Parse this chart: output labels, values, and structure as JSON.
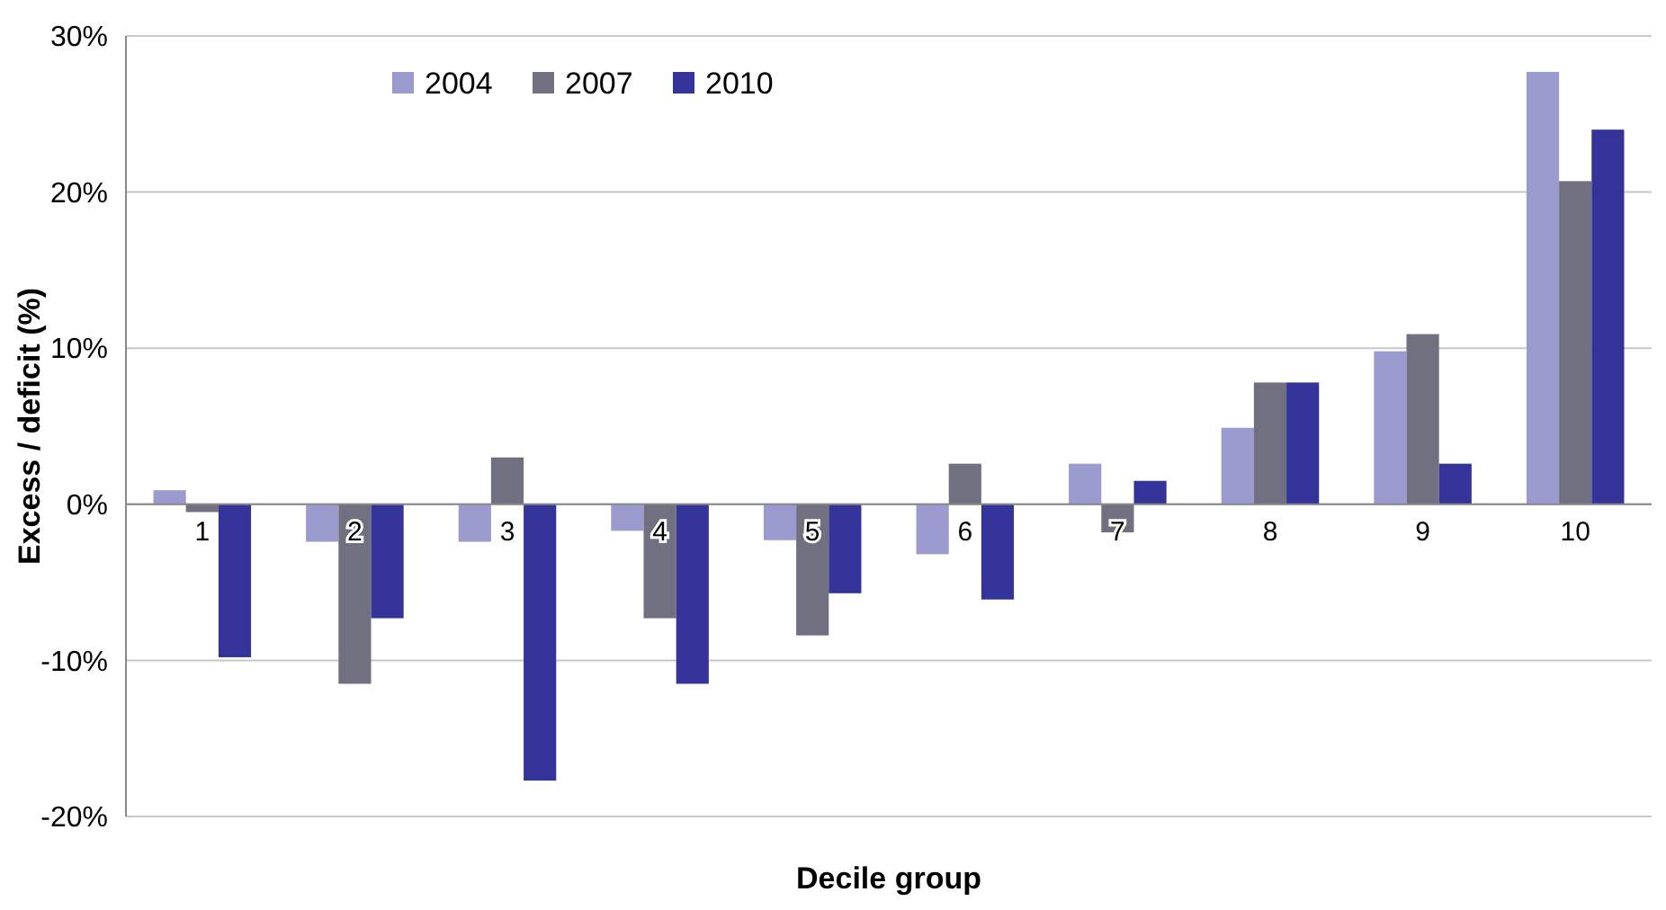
{
  "chart_data": {
    "type": "bar",
    "xlabel": "Decile group",
    "ylabel": "Excess / deficit (%)",
    "categories": [
      "1",
      "2",
      "3",
      "4",
      "5",
      "6",
      "7",
      "8",
      "9",
      "10"
    ],
    "series": [
      {
        "name": "2004",
        "color": "#9b9bd0",
        "values": [
          0.9,
          -2.4,
          -2.4,
          -1.7,
          -2.3,
          -3.2,
          2.6,
          4.9,
          9.8,
          27.7
        ]
      },
      {
        "name": "2007",
        "color": "#707080",
        "values": [
          -0.5,
          -11.5,
          3.0,
          -7.3,
          -8.4,
          2.6,
          -1.8,
          7.8,
          10.9,
          20.7
        ]
      },
      {
        "name": "2010",
        "color": "#333399",
        "values": [
          -9.8,
          -7.3,
          -17.7,
          -11.5,
          -5.7,
          -6.1,
          1.5,
          7.8,
          2.6,
          24.0
        ]
      }
    ],
    "ylim": [
      -20,
      30
    ],
    "yticks": [
      {
        "value": -20,
        "label": "-20%"
      },
      {
        "value": -10,
        "label": "-10%"
      },
      {
        "value": 0,
        "label": "0%"
      },
      {
        "value": 10,
        "label": "10%"
      },
      {
        "value": 20,
        "label": "20%"
      },
      {
        "value": 30,
        "label": "30%"
      }
    ],
    "grid": "y",
    "legend": "top left"
  }
}
